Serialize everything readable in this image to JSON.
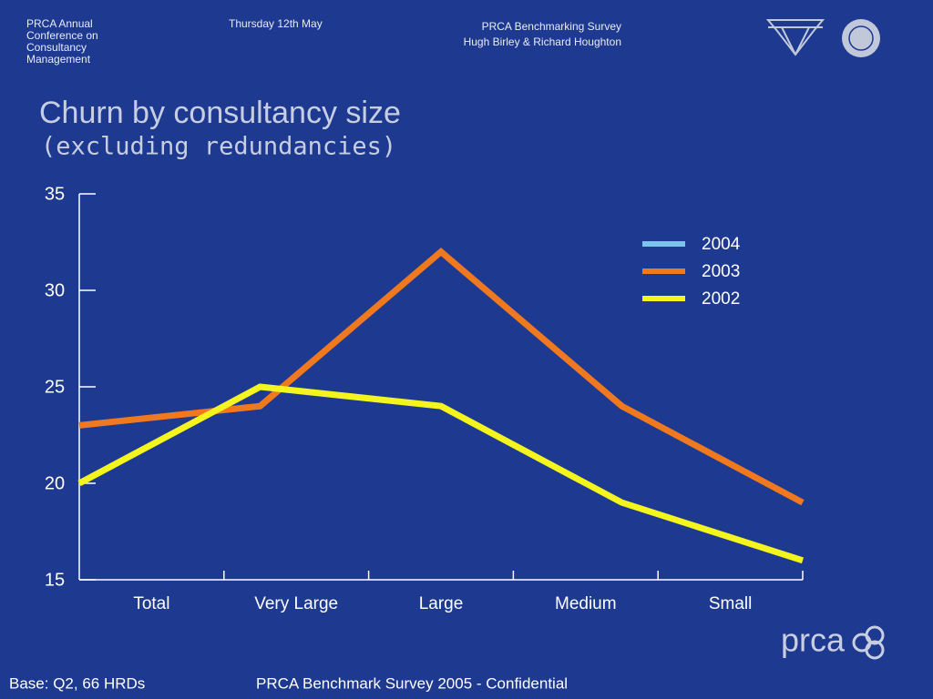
{
  "header": {
    "left": [
      "PRCA Annual",
      "Conference on",
      "Consultancy",
      "Management"
    ],
    "date": "Thursday 12th May",
    "right": [
      "PRCA Benchmarking Survey",
      "Hugh Birley & Richard Houghton"
    ]
  },
  "chart_data": {
    "type": "line",
    "title": "Churn by consultancy size",
    "subtitle": "(excluding redundancies)",
    "categories": [
      "Total",
      "Very Large",
      "Large",
      "Medium",
      "Small"
    ],
    "series": [
      {
        "name": "2004",
        "color": "#7cc4ee",
        "values": [
          null,
          null,
          null,
          null,
          null
        ]
      },
      {
        "name": "2003",
        "color": "#f0781e",
        "values": [
          23,
          24,
          32,
          24,
          19
        ]
      },
      {
        "name": "2002",
        "color": "#f4f41e",
        "values": [
          20,
          25,
          24,
          19,
          16
        ]
      }
    ],
    "ylim": [
      15,
      35
    ],
    "yticks": [
      15,
      20,
      25,
      30,
      35
    ],
    "grid": false,
    "legend": "upper right"
  },
  "footer": {
    "base": "Base: Q2, 66 HRDs",
    "note": "PRCA Benchmark Survey 2005 - Confidential",
    "logo": "prca"
  }
}
